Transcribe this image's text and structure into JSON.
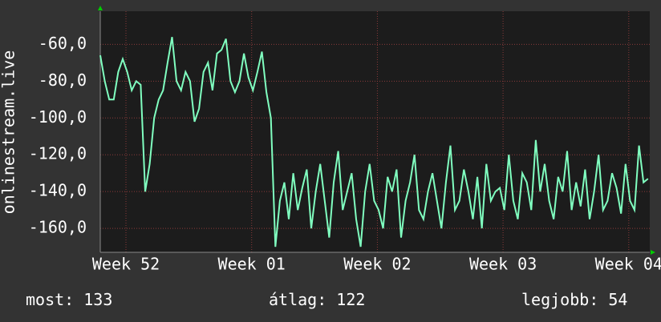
{
  "chart_data": {
    "type": "line",
    "y_label": "onlinestream.live",
    "x": [
      0,
      0.25,
      0.5,
      0.75,
      1,
      1.25,
      1.5,
      1.75,
      2,
      2.25,
      2.5,
      2.75,
      3,
      3.25,
      3.5,
      3.75,
      4,
      4.25,
      4.5,
      4.75,
      5,
      5.25,
      5.5,
      5.75,
      6,
      6.25,
      6.5,
      6.75,
      7,
      7.25,
      7.5,
      7.75,
      8,
      8.25,
      8.5,
      8.75,
      9,
      9.25,
      9.5,
      9.75,
      10,
      10.25,
      10.5,
      10.75,
      11,
      11.25,
      11.5,
      11.75,
      12,
      12.25,
      12.5,
      12.75,
      13,
      13.25,
      13.5,
      13.75,
      14,
      14.25,
      14.5,
      14.75,
      15,
      15.25,
      15.5,
      15.75,
      16,
      16.25,
      16.5,
      16.75,
      17,
      17.25,
      17.5,
      17.75,
      18,
      18.25,
      18.5,
      18.75,
      19,
      19.25,
      19.5,
      19.75,
      20,
      20.25,
      20.5,
      20.75,
      21,
      21.25,
      21.5,
      21.75,
      22,
      22.25,
      22.5,
      22.75,
      23,
      23.25,
      23.5,
      23.75,
      24,
      24.25,
      24.5,
      24.75,
      25,
      25.25,
      25.5,
      25.75,
      26,
      26.25,
      26.5,
      26.75,
      27,
      27.25,
      27.5,
      27.75,
      28,
      28.25,
      28.5,
      28.75,
      29,
      29.25,
      29.5,
      29.75,
      30,
      30.25,
      30.5
    ],
    "series": [
      {
        "color": "#80ffc0",
        "values": [
          -66,
          -80,
          -90,
          -90,
          -75,
          -68,
          -75,
          -85,
          -80,
          -82,
          -140,
          -125,
          -100,
          -90,
          -85,
          -70,
          -56,
          -80,
          -85,
          -75,
          -80,
          -102,
          -95,
          -75,
          -70,
          -85,
          -65,
          -63,
          -57,
          -80,
          -86,
          -80,
          -65,
          -78,
          -85,
          -75,
          -64,
          -86,
          -100,
          -170,
          -145,
          -135,
          -155,
          -130,
          -150,
          -138,
          -128,
          -160,
          -140,
          -125,
          -145,
          -165,
          -135,
          -118,
          -150,
          -140,
          -130,
          -155,
          -170,
          -140,
          -125,
          -145,
          -150,
          -160,
          -132,
          -140,
          -128,
          -165,
          -145,
          -135,
          -120,
          -150,
          -155,
          -140,
          -130,
          -145,
          -160,
          -135,
          -115,
          -150,
          -145,
          -128,
          -140,
          -155,
          -132,
          -160,
          -125,
          -145,
          -140,
          -138,
          -150,
          -120,
          -145,
          -155,
          -130,
          -135,
          -150,
          -112,
          -140,
          -125,
          -145,
          -155,
          -132,
          -140,
          -118,
          -150,
          -135,
          -148,
          -128,
          -155,
          -140,
          -120,
          -150,
          -145,
          -130,
          -138,
          -152,
          -125,
          -145,
          -150,
          -115,
          -135,
          -133
        ]
      }
    ],
    "xlim": [
      0,
      30.6
    ],
    "xticks": [
      {
        "value": 1.43,
        "label": "Week 52"
      },
      {
        "value": 8.43,
        "label": "Week 01"
      },
      {
        "value": 15.43,
        "label": "Week 02"
      },
      {
        "value": 22.43,
        "label": "Week 03"
      },
      {
        "value": 29.43,
        "label": "Week 04"
      }
    ],
    "ylim": [
      -173,
      -42
    ],
    "yticks": [
      {
        "value": -60,
        "label": "-60,0"
      },
      {
        "value": -80,
        "label": "-80,0"
      },
      {
        "value": -100,
        "label": "-100,0"
      },
      {
        "value": -120,
        "label": "-120,0"
      },
      {
        "value": -140,
        "label": "-140,0"
      },
      {
        "value": -160,
        "label": "-160,0"
      }
    ],
    "grid": true,
    "stats": [
      {
        "label": "most:",
        "value": 133
      },
      {
        "label": "átlag:",
        "value": 122
      },
      {
        "label": "legjobb:",
        "value": 54
      }
    ]
  }
}
